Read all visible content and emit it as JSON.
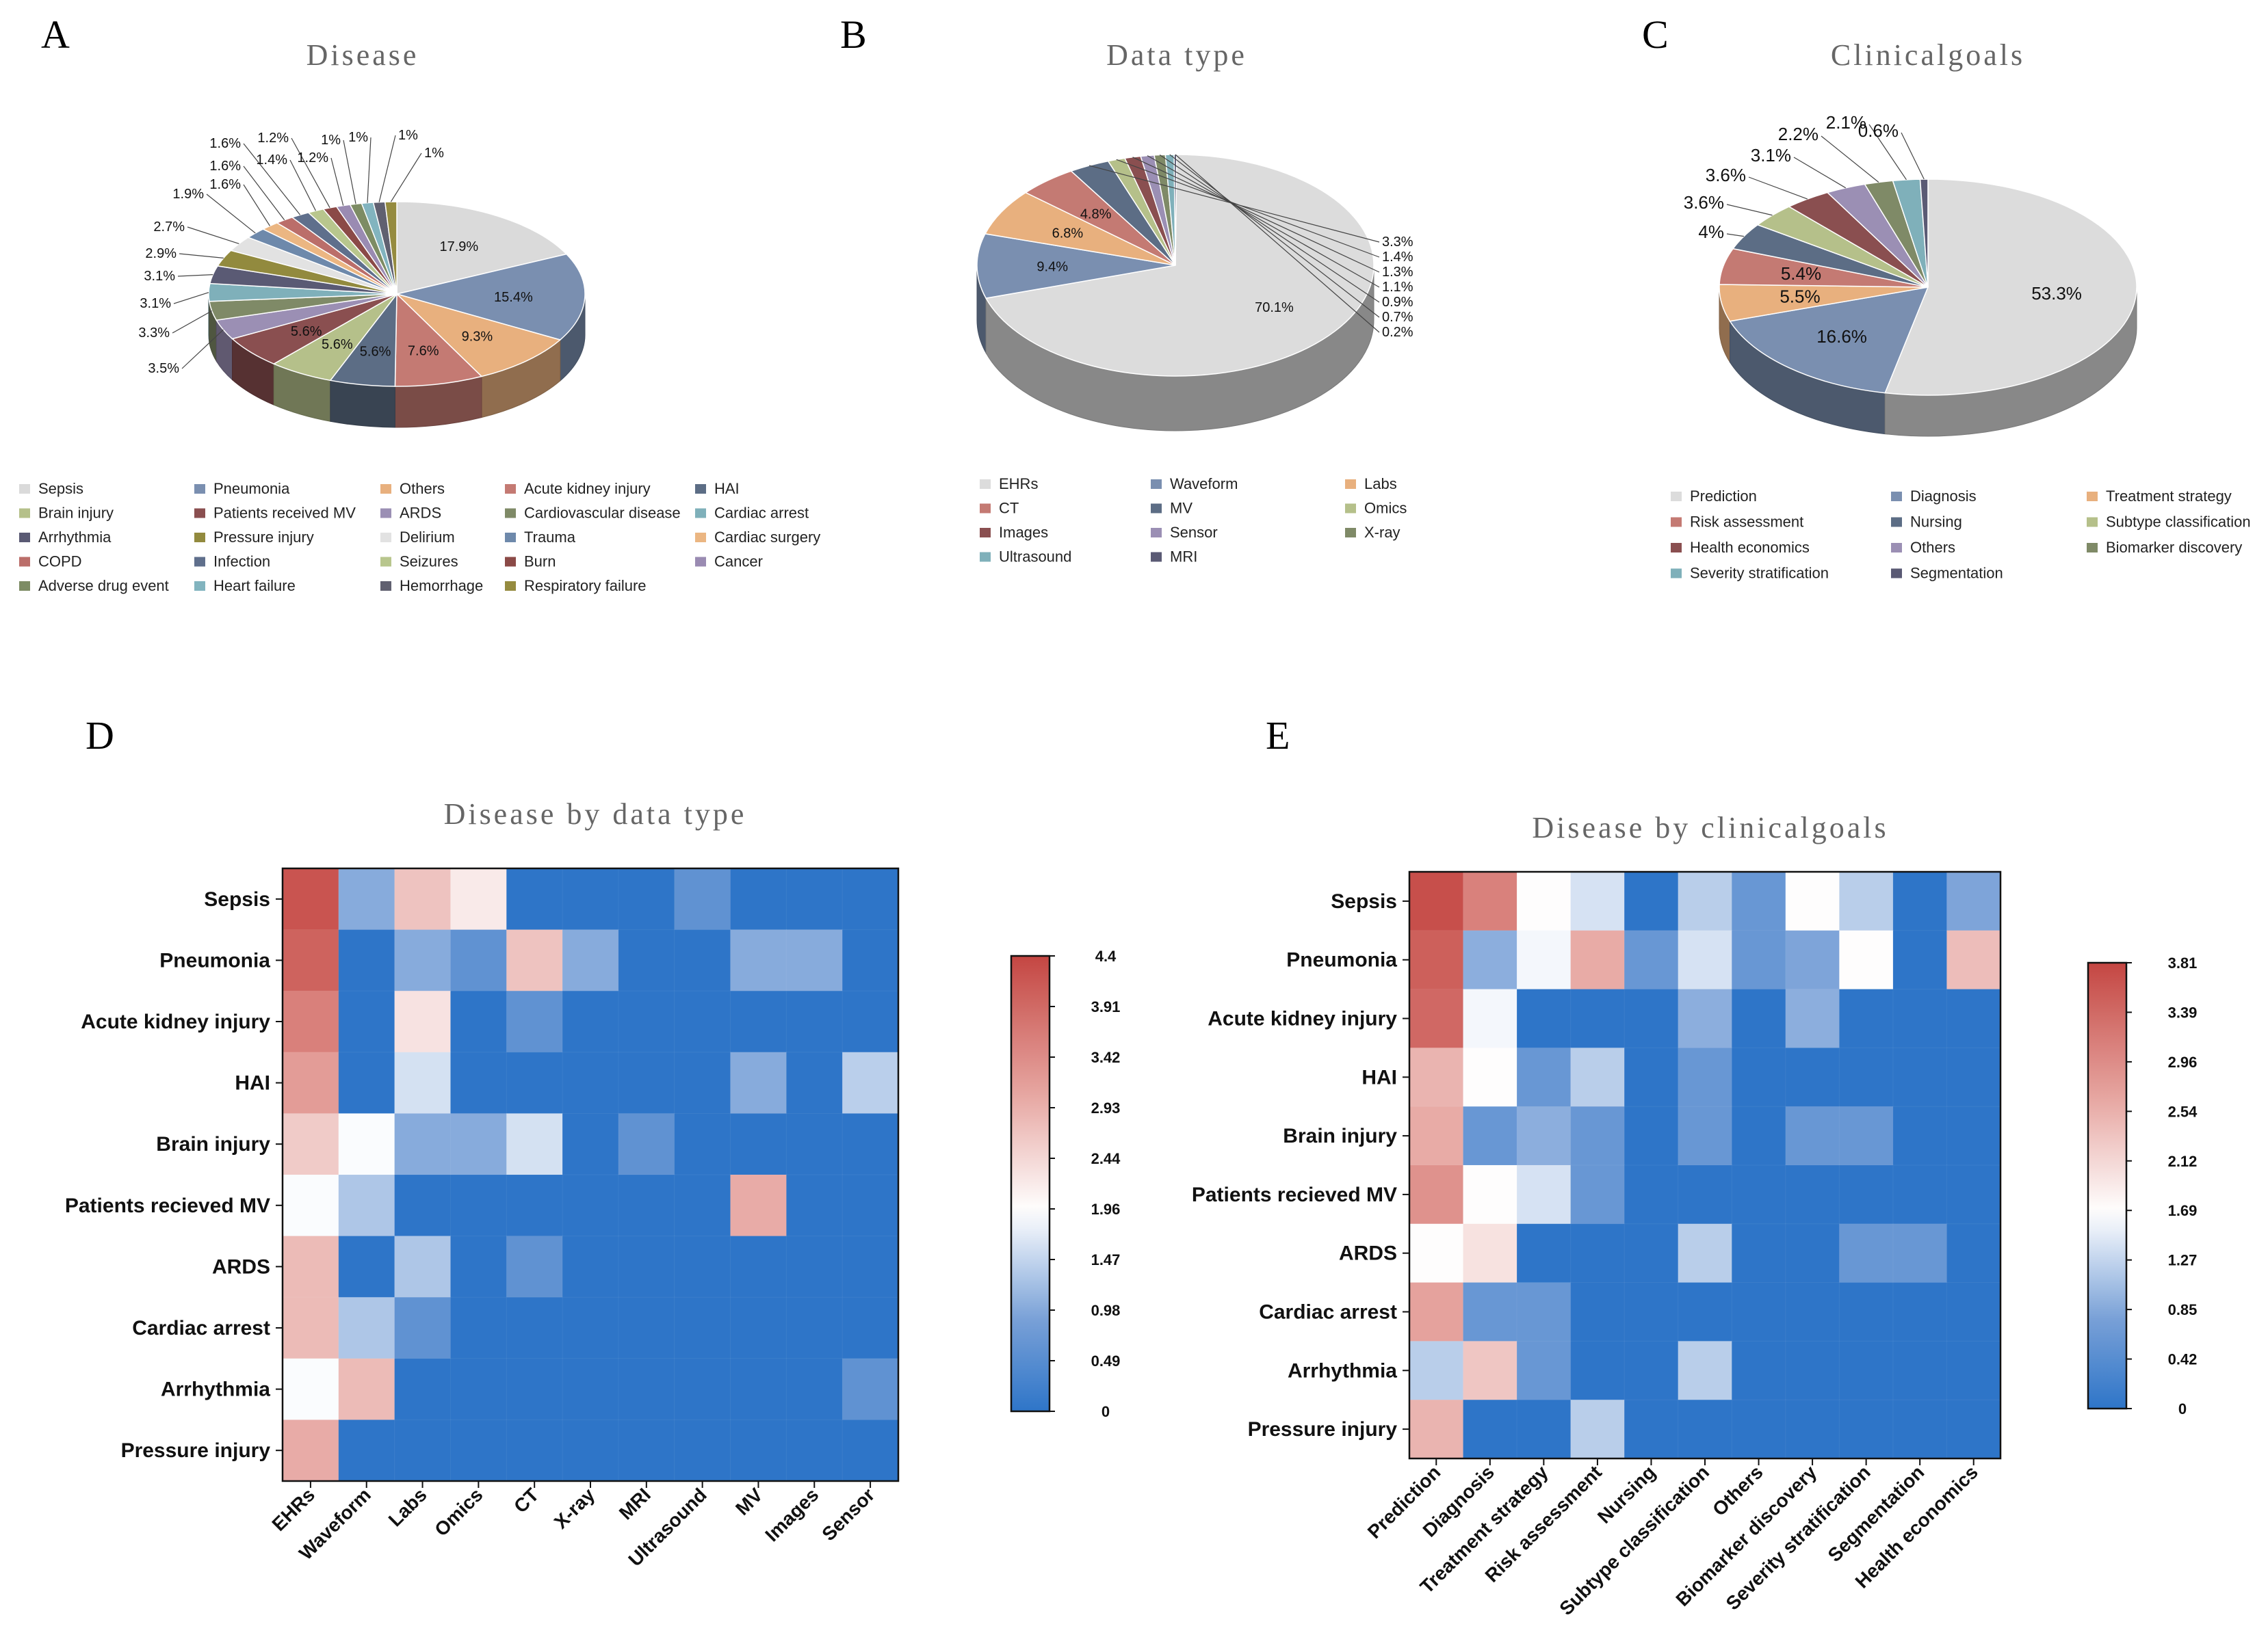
{
  "panel_labels": [
    "A",
    "B",
    "C",
    "D",
    "E"
  ],
  "chart_data": [
    {
      "id": "A",
      "type": "pie",
      "title": "Disease",
      "labels": [
        "Sepsis",
        "Pneumonia",
        "Others",
        "Acute kidney injury",
        "HAI",
        "Brain injury",
        "Patients received MV",
        "ARDS",
        "Cardiovascular disease",
        "Cardiac arrest",
        "Arrhythmia",
        "Pressure injury",
        "Delirium",
        "Trauma",
        "Cardiac surgery",
        "COPD",
        "Infection",
        "Seizures",
        "Burn",
        "Cancer",
        "Adverse drug event",
        "Heart failure",
        "Hemorrhage",
        "Respiratory failure"
      ],
      "values": [
        17.9,
        15.4,
        9.3,
        7.6,
        5.6,
        5.6,
        5.6,
        3.5,
        3.3,
        3.1,
        3.1,
        2.9,
        2.7,
        1.9,
        1.6,
        1.6,
        1.6,
        1.4,
        1.2,
        1.2,
        1,
        1,
        1,
        1
      ],
      "value_labels": [
        "17.9%",
        "15.4%",
        "9.3%",
        "7.6%",
        "5.6%",
        "5.6%",
        "5.6%",
        "3.5%",
        "3.3%",
        "3.1%",
        "3.1%",
        "2.9%",
        "2.7%",
        "1.9%",
        "1.6%",
        "1.6%",
        "1.6%",
        "1.4%",
        "1.2%",
        "1.2%",
        "1%",
        "1%",
        "1%",
        "1%"
      ],
      "colors": [
        "#dadada",
        "#7a8fb0",
        "#e8b07e",
        "#c47a73",
        "#5c6d85",
        "#b5c08a",
        "#8a4f50",
        "#9b8fb4",
        "#7f8a67",
        "#7fb0ba",
        "#5a5a74",
        "#928a3e",
        "#e2e2e2",
        "#6e89ab",
        "#ebb682",
        "#bb6e6a",
        "#5f6f8c",
        "#b8c68d",
        "#8b4a47",
        "#9a8bb2",
        "#7d8c64",
        "#82b4bf",
        "#606070",
        "#958b3f"
      ],
      "legend": [
        "Sepsis",
        "Pneumonia",
        "Others",
        "Acute kidney injury",
        "HAI",
        "Brain injury",
        "Patients received MV",
        "ARDS",
        "Cardiovascular disease",
        "Cardiac arrest",
        "Arrhythmia",
        "Pressure injury",
        "Delirium",
        "Trauma",
        "Cardiac surgery",
        "COPD",
        "Infection",
        "Seizures",
        "Burn",
        "Cancer",
        "Adverse drug event",
        "Heart failure",
        "Hemorrhage",
        "Respiratory failure"
      ]
    },
    {
      "id": "B",
      "type": "pie",
      "title": "Data type",
      "labels": [
        "EHRs",
        "Waveform",
        "Labs",
        "CT",
        "MV",
        "Omics",
        "Images",
        "Sensor",
        "X-ray",
        "Ultrasound",
        "MRI"
      ],
      "values": [
        70.1,
        9.4,
        6.8,
        4.8,
        3.3,
        1.4,
        1.3,
        1.1,
        0.9,
        0.7,
        0.2
      ],
      "value_labels": [
        "70.1%",
        "9.4%",
        "6.8%",
        "4.8%",
        "3.3%",
        "1.4%",
        "1.3%",
        "1.1%",
        "0.9%",
        "0.7%",
        "0.2%"
      ],
      "colors": [
        "#dcdcdc",
        "#7a8fb0",
        "#e8b07e",
        "#c47a73",
        "#5c6d85",
        "#b5c08a",
        "#8a4f50",
        "#9b8fb4",
        "#7f8a67",
        "#7fb0ba",
        "#5a5a74"
      ],
      "legend": [
        "EHRs",
        "Waveform",
        "Labs",
        "CT",
        "MV",
        "Omics",
        "Images",
        "Sensor",
        "X-ray",
        "Ultrasound",
        "MRI"
      ]
    },
    {
      "id": "C",
      "type": "pie",
      "title": "Clinicalgoals",
      "labels": [
        "Prediction",
        "Diagnosis",
        "Treatment strategy",
        "Risk assessment",
        "Nursing",
        "Subtype classification",
        "Health economics",
        "Others",
        "Biomarker discovery",
        "Severity stratification",
        "Segmentation"
      ],
      "values": [
        53.3,
        16.6,
        5.5,
        5.4,
        4,
        3.6,
        3.6,
        3.1,
        2.2,
        2.1,
        0.6
      ],
      "value_labels": [
        "53.3%",
        "16.6%",
        "5.5%",
        "5.4%",
        "4%",
        "3.6%",
        "3.6%",
        "3.1%",
        "2.2%",
        "2.1%",
        "0.6%"
      ],
      "colors": [
        "#dcdcdc",
        "#7a8fb0",
        "#e8b07e",
        "#c47a73",
        "#5c6d85",
        "#b5c08a",
        "#8a4f50",
        "#9b8fb4",
        "#7f8a67",
        "#7fb0ba",
        "#5a5a74"
      ],
      "legend": [
        "Prediction",
        "Diagnosis",
        "Treatment strategy",
        "Risk assessment",
        "Nursing",
        "Subtype classification",
        "Health economics",
        "Others",
        "Biomarker discovery",
        "Severity stratification",
        "Segmentation"
      ]
    },
    {
      "id": "D",
      "type": "heatmap",
      "title": "Disease by data type",
      "rows": [
        "Sepsis",
        "Pneumonia",
        "Acute kidney injury",
        "HAI",
        "Brain injury",
        "Patients recieved MV",
        "ARDS",
        "Cardiac arrest",
        "Arrhythmia",
        "Pressure injury"
      ],
      "cols": [
        "EHRs",
        "Waveform",
        "Labs",
        "Omics",
        "CT",
        "X-ray",
        "MRI",
        "Ultrasound",
        "MV",
        "Images",
        "Sensor"
      ],
      "values": [
        [
          4.2,
          1.0,
          2.7,
          2.2,
          0,
          0,
          0,
          0.6,
          0,
          0,
          0
        ],
        [
          4.0,
          0,
          1.0,
          0.6,
          2.7,
          1.0,
          0,
          0,
          1.0,
          1.0,
          0
        ],
        [
          3.6,
          0,
          2.3,
          0,
          0.6,
          0,
          0,
          0,
          0,
          0,
          0
        ],
        [
          3.2,
          0,
          1.6,
          0,
          0,
          0,
          0,
          0,
          1.0,
          0,
          1.4
        ],
        [
          2.6,
          1.9,
          1.0,
          1.0,
          1.6,
          0,
          0.6,
          0,
          0,
          0,
          0
        ],
        [
          1.9,
          1.3,
          0,
          0,
          0,
          0,
          0,
          0,
          3.0,
          0,
          0
        ],
        [
          2.8,
          0,
          1.3,
          0,
          0.6,
          0,
          0,
          0,
          0,
          0,
          0
        ],
        [
          2.8,
          1.3,
          0.6,
          0,
          0,
          0,
          0,
          0,
          0,
          0,
          0
        ],
        [
          1.9,
          2.8,
          0,
          0,
          0,
          0,
          0,
          0,
          0,
          0,
          0.6
        ],
        [
          3.0,
          0,
          0,
          0,
          0,
          0,
          0,
          0,
          0,
          0,
          0
        ]
      ],
      "vmin": 0,
      "vmax": 4.4,
      "colorbar_ticks": [
        "4.4",
        "3.91",
        "3.42",
        "2.93",
        "2.44",
        "1.96",
        "1.47",
        "0.98",
        "0.49",
        "0"
      ]
    },
    {
      "id": "E",
      "type": "heatmap",
      "title": "Disease by clinicalgoals",
      "rows": [
        "Sepsis",
        "Pneumonia",
        "Acute kidney injury",
        "HAI",
        "Brain injury",
        "Patients recieved MV",
        "ARDS",
        "Cardiac arrest",
        "Arrhythmia",
        "Pressure injury"
      ],
      "cols": [
        "Prediction",
        "Diagnosis",
        "Treatment strategy",
        "Risk assessment",
        "Nursing",
        "Subtype classification",
        "Others",
        "Biomarker discovery",
        "Severity stratification",
        "Segmentation",
        "Health economics"
      ],
      "values": [
        [
          3.7,
          3.1,
          1.7,
          1.4,
          0,
          1.2,
          0.6,
          1.7,
          1.2,
          0,
          0.8
        ],
        [
          3.5,
          0.9,
          1.6,
          2.6,
          0.6,
          1.4,
          0.6,
          0.8,
          1.7,
          0,
          2.4
        ],
        [
          3.4,
          1.6,
          0,
          0,
          0,
          0.9,
          0,
          0.9,
          0,
          0,
          0
        ],
        [
          2.5,
          1.7,
          0.6,
          1.2,
          0,
          0.6,
          0,
          0,
          0,
          0,
          0
        ],
        [
          2.6,
          0.6,
          0.9,
          0.6,
          0,
          0.6,
          0,
          0.6,
          0.6,
          0,
          0
        ],
        [
          2.9,
          1.7,
          1.4,
          0.6,
          0,
          0,
          0,
          0,
          0,
          0,
          0
        ],
        [
          1.7,
          2.0,
          0,
          0,
          0,
          1.2,
          0,
          0,
          0.6,
          0.6,
          0
        ],
        [
          2.7,
          0.6,
          0.6,
          0,
          0,
          0,
          0,
          0,
          0,
          0,
          0
        ],
        [
          1.2,
          2.3,
          0.6,
          0,
          0,
          1.2,
          0,
          0,
          0,
          0,
          0
        ],
        [
          2.5,
          0,
          0,
          1.2,
          0,
          0,
          0,
          0,
          0,
          0,
          0
        ]
      ],
      "vmin": 0,
      "vmax": 3.81,
      "colorbar_ticks": [
        "3.81",
        "3.39",
        "2.96",
        "2.54",
        "2.12",
        "1.69",
        "1.27",
        "0.85",
        "0.42",
        "0"
      ]
    }
  ]
}
